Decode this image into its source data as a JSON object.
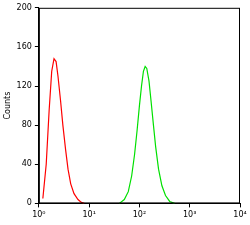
{
  "chart_data": {
    "type": "line",
    "y_label": "Counts",
    "log": "x",
    "grid": false,
    "xlim": [
      1,
      10000
    ],
    "xticks": [
      {
        "value": 1,
        "label": "10⁰"
      },
      {
        "value": 10,
        "label": "10¹"
      },
      {
        "value": 100,
        "label": "10²"
      },
      {
        "value": 1000,
        "label": "10³"
      },
      {
        "value": 10000,
        "label": "10⁴"
      }
    ],
    "ylim": [
      0,
      200
    ],
    "yticks": [
      0,
      40,
      80,
      120,
      160,
      200
    ],
    "series": [
      {
        "color": "#ff0000",
        "x": [
          1.2,
          1.4,
          1.6,
          1.8,
          2.0,
          2.2,
          2.4,
          2.7,
          3.0,
          3.4,
          3.8,
          4.3,
          5,
          6,
          7,
          8
        ],
        "values": [
          5,
          40,
          95,
          135,
          148,
          145,
          130,
          105,
          80,
          55,
          35,
          20,
          10,
          4,
          1,
          0
        ]
      },
      {
        "color": "#00e000",
        "x": [
          40,
          50,
          60,
          70,
          80,
          90,
          100,
          110,
          120,
          130,
          140,
          155,
          170,
          190,
          210,
          240,
          280,
          330,
          400,
          500
        ],
        "values": [
          0,
          4,
          12,
          28,
          50,
          75,
          100,
          120,
          135,
          140,
          138,
          125,
          105,
          80,
          58,
          35,
          18,
          8,
          2,
          0
        ]
      }
    ]
  }
}
